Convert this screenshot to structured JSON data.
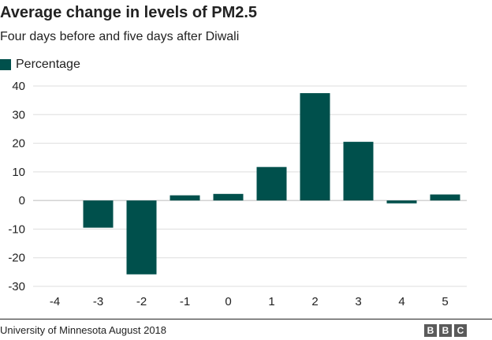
{
  "chart_data": {
    "type": "bar",
    "title": "Average change in levels of PM2.5",
    "subtitle": "Four days before and five days after Diwali",
    "legend": [
      "Percentage"
    ],
    "legend_position": "top-left",
    "categories": [
      "-4",
      "-3",
      "-2",
      "-1",
      "0",
      "1",
      "2",
      "3",
      "4",
      "5"
    ],
    "series": [
      {
        "name": "Percentage",
        "values": [
          0,
          -9.5,
          -25.8,
          1.8,
          2.3,
          11.7,
          37.5,
          20.5,
          -1.0,
          2.1
        ]
      }
    ],
    "ylim": [
      -30,
      40
    ],
    "yticks": [
      40,
      30,
      20,
      10,
      0,
      -10,
      -20,
      -30
    ],
    "grid": true,
    "bar_color": "#00504c"
  },
  "footer": {
    "source": "University of Minnesota August 2018",
    "logo": [
      "B",
      "B",
      "C"
    ]
  }
}
